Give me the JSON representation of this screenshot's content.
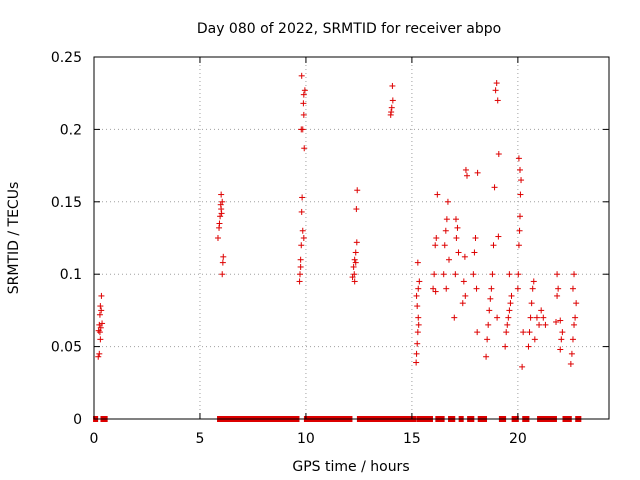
{
  "chart_data": {
    "type": "scatter",
    "title": "Day 080 of 2022, SRMTID for receiver abpo",
    "xlabel": "GPS time / hours",
    "ylabel": "SRMTID / TECUs",
    "xlim": [
      0,
      24.3
    ],
    "ylim": [
      0,
      0.25
    ],
    "xticks": [
      0,
      5,
      10,
      15,
      20
    ],
    "yticks": [
      0,
      0.05,
      0.1,
      0.15,
      0.2,
      0.25
    ],
    "xtick_labels": [
      "0",
      "5",
      "10",
      "15",
      "20"
    ],
    "ytick_labels": [
      "0",
      "0.05",
      "0.1",
      "0.15",
      "0.2",
      "0.25"
    ],
    "grid": true,
    "marker": "+",
    "series": [
      {
        "name": "SRMTID",
        "color": "#dd0000",
        "points": [
          [
            0.2,
            0.043
          ],
          [
            0.22,
            0.061
          ],
          [
            0.25,
            0.065
          ],
          [
            0.28,
            0.072
          ],
          [
            0.3,
            0.078
          ],
          [
            0.32,
            0.063
          ],
          [
            0.35,
            0.085
          ],
          [
            0.38,
            0.066
          ],
          [
            0.25,
            0.045
          ],
          [
            0.3,
            0.055
          ],
          [
            0.34,
            0.075
          ],
          [
            0.28,
            0.06
          ],
          [
            5.85,
            0.125
          ],
          [
            5.9,
            0.132
          ],
          [
            5.95,
            0.14
          ],
          [
            6.0,
            0.145
          ],
          [
            6.05,
            0.15
          ],
          [
            6.0,
            0.155
          ],
          [
            5.92,
            0.135
          ],
          [
            6.08,
            0.108
          ],
          [
            6.05,
            0.1
          ],
          [
            6.1,
            0.112
          ],
          [
            5.98,
            0.148
          ],
          [
            6.02,
            0.142
          ],
          [
            9.7,
            0.095
          ],
          [
            9.72,
            0.1
          ],
          [
            9.75,
            0.11
          ],
          [
            9.78,
            0.12
          ],
          [
            9.8,
            0.143
          ],
          [
            9.82,
            0.153
          ],
          [
            9.85,
            0.2
          ],
          [
            9.88,
            0.218
          ],
          [
            9.9,
            0.224
          ],
          [
            9.8,
            0.237
          ],
          [
            9.92,
            0.187
          ],
          [
            9.95,
            0.227
          ],
          [
            9.75,
            0.105
          ],
          [
            9.9,
            0.125
          ],
          [
            9.85,
            0.13
          ],
          [
            9.78,
            0.2
          ],
          [
            9.9,
            0.21
          ],
          [
            12.2,
            0.098
          ],
          [
            12.25,
            0.105
          ],
          [
            12.3,
            0.11
          ],
          [
            12.35,
            0.115
          ],
          [
            12.4,
            0.122
          ],
          [
            12.38,
            0.145
          ],
          [
            12.42,
            0.158
          ],
          [
            12.3,
            0.095
          ],
          [
            12.28,
            0.1
          ],
          [
            12.35,
            0.108
          ],
          [
            14.0,
            0.21
          ],
          [
            14.05,
            0.215
          ],
          [
            14.1,
            0.22
          ],
          [
            14.08,
            0.23
          ],
          [
            14.02,
            0.212
          ],
          [
            15.2,
            0.039
          ],
          [
            15.22,
            0.045
          ],
          [
            15.25,
            0.052
          ],
          [
            15.28,
            0.06
          ],
          [
            15.3,
            0.07
          ],
          [
            15.25,
            0.078
          ],
          [
            15.22,
            0.085
          ],
          [
            15.3,
            0.09
          ],
          [
            15.35,
            0.095
          ],
          [
            15.28,
            0.108
          ],
          [
            15.32,
            0.065
          ],
          [
            16.0,
            0.09
          ],
          [
            16.05,
            0.1
          ],
          [
            16.1,
            0.12
          ],
          [
            16.15,
            0.125
          ],
          [
            16.2,
            0.155
          ],
          [
            16.12,
            0.088
          ],
          [
            16.5,
            0.1
          ],
          [
            16.55,
            0.12
          ],
          [
            16.6,
            0.13
          ],
          [
            16.65,
            0.138
          ],
          [
            16.7,
            0.15
          ],
          [
            16.75,
            0.11
          ],
          [
            16.62,
            0.09
          ],
          [
            17.0,
            0.07
          ],
          [
            17.05,
            0.1
          ],
          [
            17.1,
            0.125
          ],
          [
            17.15,
            0.132
          ],
          [
            17.2,
            0.115
          ],
          [
            17.08,
            0.138
          ],
          [
            17.4,
            0.08
          ],
          [
            17.45,
            0.095
          ],
          [
            17.5,
            0.112
          ],
          [
            17.55,
            0.172
          ],
          [
            17.6,
            0.168
          ],
          [
            17.52,
            0.085
          ],
          [
            17.9,
            0.1
          ],
          [
            17.95,
            0.115
          ],
          [
            18.0,
            0.125
          ],
          [
            18.05,
            0.09
          ],
          [
            18.1,
            0.17
          ],
          [
            18.08,
            0.06
          ],
          [
            18.5,
            0.043
          ],
          [
            18.55,
            0.055
          ],
          [
            18.6,
            0.065
          ],
          [
            18.65,
            0.075
          ],
          [
            18.7,
            0.083
          ],
          [
            18.75,
            0.09
          ],
          [
            18.8,
            0.1
          ],
          [
            18.85,
            0.12
          ],
          [
            18.9,
            0.16
          ],
          [
            18.95,
            0.227
          ],
          [
            19.0,
            0.232
          ],
          [
            19.05,
            0.22
          ],
          [
            19.1,
            0.183
          ],
          [
            19.08,
            0.126
          ],
          [
            19.02,
            0.07
          ],
          [
            19.4,
            0.05
          ],
          [
            19.45,
            0.06
          ],
          [
            19.5,
            0.065
          ],
          [
            19.55,
            0.07
          ],
          [
            19.6,
            0.075
          ],
          [
            19.65,
            0.08
          ],
          [
            19.7,
            0.085
          ],
          [
            19.6,
            0.1
          ],
          [
            20.0,
            0.09
          ],
          [
            20.02,
            0.1
          ],
          [
            20.05,
            0.12
          ],
          [
            20.08,
            0.13
          ],
          [
            20.1,
            0.14
          ],
          [
            20.12,
            0.155
          ],
          [
            20.15,
            0.165
          ],
          [
            20.1,
            0.172
          ],
          [
            20.05,
            0.18
          ],
          [
            20.2,
            0.036
          ],
          [
            20.25,
            0.06
          ],
          [
            20.5,
            0.05
          ],
          [
            20.55,
            0.06
          ],
          [
            20.6,
            0.07
          ],
          [
            20.65,
            0.08
          ],
          [
            20.7,
            0.09
          ],
          [
            20.75,
            0.095
          ],
          [
            20.8,
            0.055
          ],
          [
            20.9,
            0.07
          ],
          [
            21.0,
            0.065
          ],
          [
            21.1,
            0.075
          ],
          [
            21.2,
            0.07
          ],
          [
            21.3,
            0.065
          ],
          [
            21.8,
            0.067
          ],
          [
            21.85,
            0.085
          ],
          [
            21.9,
            0.09
          ],
          [
            21.85,
            0.1
          ],
          [
            22.0,
            0.048
          ],
          [
            22.05,
            0.055
          ],
          [
            22.1,
            0.06
          ],
          [
            22.0,
            0.068
          ],
          [
            22.5,
            0.038
          ],
          [
            22.55,
            0.045
          ],
          [
            22.6,
            0.055
          ],
          [
            22.65,
            0.065
          ],
          [
            22.7,
            0.07
          ],
          [
            22.75,
            0.08
          ],
          [
            22.6,
            0.09
          ],
          [
            22.65,
            0.1
          ]
        ]
      }
    ],
    "zero_band_hours": [
      [
        0.05,
        0.1
      ],
      [
        0.4,
        0.55
      ],
      [
        5.9,
        6.1
      ],
      [
        6.2,
        9.6
      ],
      [
        10.0,
        12.1
      ],
      [
        12.5,
        15.1
      ],
      [
        15.3,
        15.9
      ],
      [
        16.2,
        16.45
      ],
      [
        16.8,
        16.95
      ],
      [
        17.3,
        17.35
      ],
      [
        17.7,
        17.85
      ],
      [
        18.2,
        18.45
      ],
      [
        19.2,
        19.35
      ],
      [
        19.8,
        19.95
      ],
      [
        20.3,
        20.45
      ],
      [
        21.0,
        21.75
      ],
      [
        22.2,
        22.45
      ],
      [
        22.8,
        22.9
      ]
    ]
  }
}
